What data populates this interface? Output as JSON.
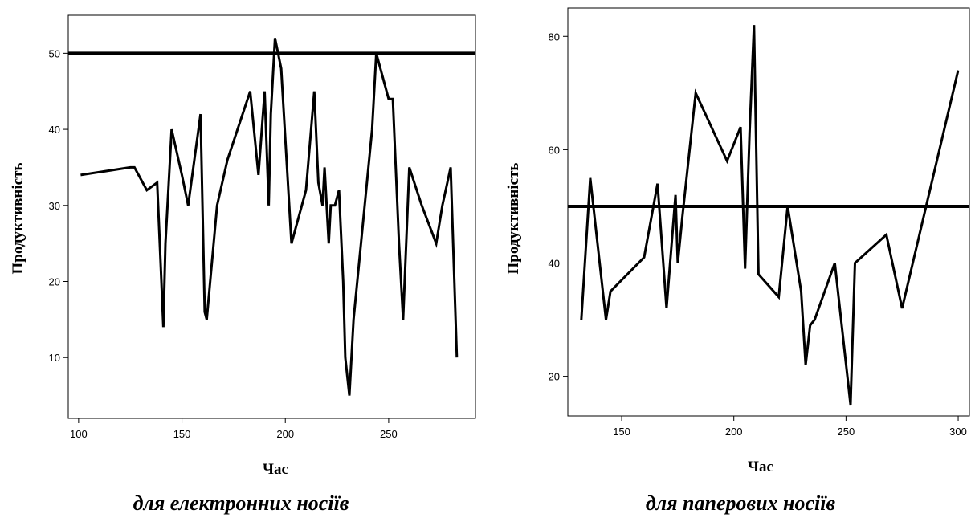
{
  "chart_data": [
    {
      "type": "line",
      "xlabel": "Час",
      "ylabel": "Продуктивність",
      "caption": "для електронних носіїв",
      "xlim": [
        95,
        292
      ],
      "ylim": [
        2,
        55
      ],
      "xticks": [
        "100",
        "150",
        "200",
        "250"
      ],
      "yticks": [
        "10",
        "20",
        "30",
        "40",
        "50"
      ],
      "reference_line": 50,
      "series": [
        {
          "x": [
            101,
            125,
            127,
            133,
            138,
            141,
            142,
            145,
            150,
            153,
            156,
            159,
            161,
            162,
            167,
            172,
            183,
            187,
            190,
            192,
            193,
            195,
            198,
            203,
            210,
            214,
            216,
            218,
            219,
            221,
            222,
            224,
            226,
            228,
            229,
            231,
            233,
            242,
            244,
            250,
            252,
            255,
            257,
            260,
            266,
            273,
            276,
            280,
            283
          ],
          "y": [
            34,
            35,
            35,
            32,
            33,
            14,
            25,
            40,
            34,
            30,
            36,
            42,
            16,
            15,
            30,
            36,
            45,
            34,
            45,
            30,
            42,
            52,
            48,
            25,
            32,
            45,
            33,
            30,
            35,
            25,
            30,
            30,
            32,
            20,
            10,
            5,
            15,
            40,
            50,
            44,
            44,
            25,
            15,
            35,
            30,
            25,
            30,
            35,
            10
          ]
        }
      ]
    },
    {
      "type": "line",
      "xlabel": "Час",
      "ylabel": "Продуктивність",
      "caption": "для паперових носіїв",
      "xlim": [
        126,
        305
      ],
      "ylim": [
        13,
        85
      ],
      "xticks": [
        "150",
        "200",
        "250",
        "300"
      ],
      "yticks": [
        "20",
        "40",
        "60",
        "80"
      ],
      "reference_line": 50,
      "series": [
        {
          "x": [
            132,
            136,
            143,
            145,
            160,
            166,
            170,
            174,
            175,
            177,
            183,
            197,
            203,
            205,
            207,
            209,
            211,
            220,
            224,
            230,
            232,
            234,
            236,
            245,
            252,
            254,
            268,
            275,
            300
          ],
          "y": [
            30,
            55,
            30,
            35,
            41,
            54,
            32,
            52,
            40,
            48,
            70,
            58,
            64,
            39,
            63,
            82,
            38,
            34,
            50,
            35,
            22,
            29,
            30,
            40,
            15,
            40,
            45,
            32,
            74
          ]
        }
      ]
    }
  ]
}
